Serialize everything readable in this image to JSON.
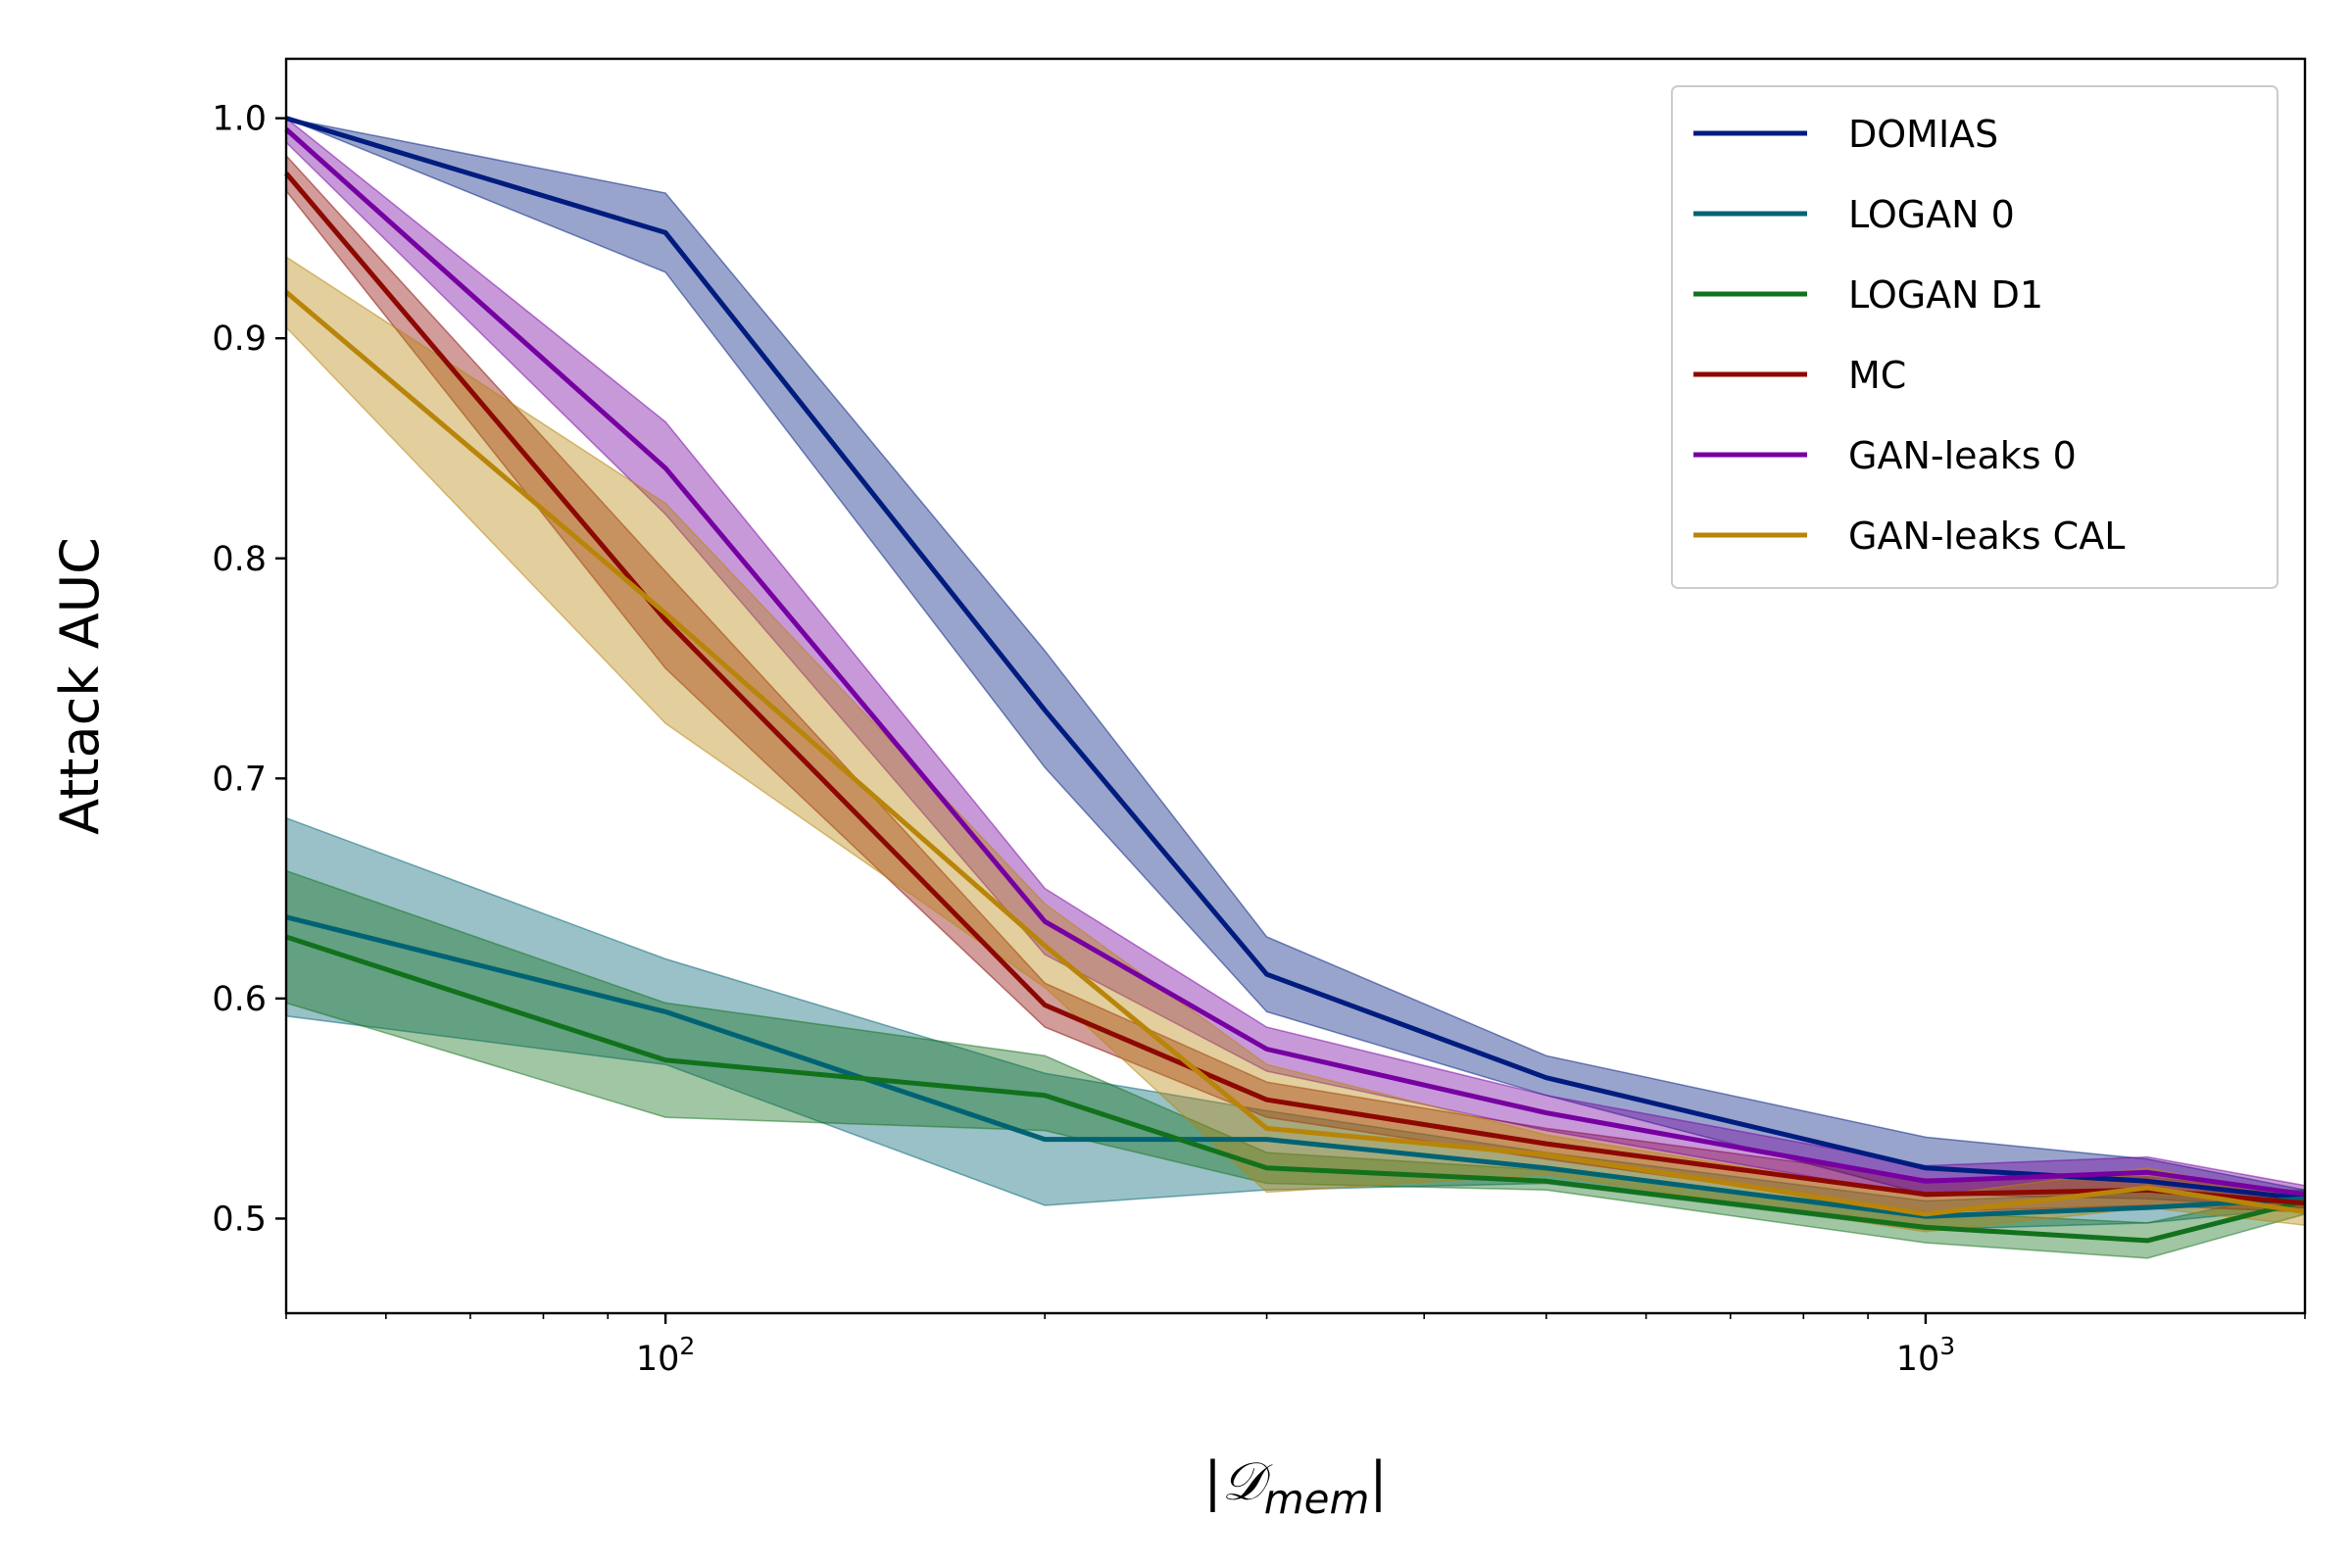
{
  "chart_data": {
    "type": "line",
    "title": "",
    "xlabel_main": "|𝒟",
    "xlabel_sub": "mem",
    "xlabel_close": "|",
    "ylabel": "Attack AUC",
    "xscale": "log",
    "xlim": [
      50,
      2000
    ],
    "ylim": [
      0.457,
      1.027
    ],
    "x_ticks": [
      {
        "value": 100,
        "base": "10",
        "exp": "2"
      },
      {
        "value": 1000,
        "base": "10",
        "exp": "3"
      }
    ],
    "y_ticks": [
      {
        "value": 0.5,
        "label": "0.5"
      },
      {
        "value": 0.6,
        "label": "0.6"
      },
      {
        "value": 0.7,
        "label": "0.7"
      },
      {
        "value": 0.8,
        "label": "0.8"
      },
      {
        "value": 0.9,
        "label": "0.9"
      },
      {
        "value": 1.0,
        "label": "1.0"
      }
    ],
    "legend_position": "top-right",
    "x": [
      50,
      100,
      200,
      300,
      500,
      1000,
      1500,
      2000
    ],
    "series": [
      {
        "name": "DOMIAS",
        "color": "#001c7f",
        "values": [
          1.0,
          0.948,
          0.731,
          0.611,
          0.564,
          0.523,
          0.517,
          0.509
        ],
        "lower": [
          1.0,
          0.93,
          0.705,
          0.594,
          0.556,
          0.511,
          0.509,
          0.505
        ],
        "upper": [
          1.0,
          0.966,
          0.758,
          0.628,
          0.574,
          0.537,
          0.527,
          0.513
        ]
      },
      {
        "name": "LOGAN 0",
        "color": "#006374",
        "values": [
          0.637,
          0.594,
          0.536,
          0.536,
          0.523,
          0.501,
          0.505,
          0.509
        ],
        "lower": [
          0.592,
          0.57,
          0.506,
          0.513,
          0.516,
          0.495,
          0.498,
          0.505
        ],
        "upper": [
          0.682,
          0.618,
          0.566,
          0.549,
          0.53,
          0.508,
          0.512,
          0.513
        ]
      },
      {
        "name": "LOGAN D1",
        "color": "#12711c",
        "values": [
          0.628,
          0.572,
          0.556,
          0.523,
          0.517,
          0.496,
          0.49,
          0.508
        ],
        "lower": [
          0.598,
          0.546,
          0.54,
          0.516,
          0.513,
          0.489,
          0.482,
          0.502
        ],
        "upper": [
          0.658,
          0.598,
          0.574,
          0.53,
          0.522,
          0.503,
          0.498,
          0.513
        ]
      },
      {
        "name": "MC",
        "color": "#8c0800",
        "values": [
          0.975,
          0.772,
          0.597,
          0.554,
          0.534,
          0.511,
          0.513,
          0.507
        ],
        "lower": [
          0.967,
          0.75,
          0.587,
          0.546,
          0.527,
          0.503,
          0.506,
          0.503
        ],
        "upper": [
          0.983,
          0.794,
          0.607,
          0.562,
          0.541,
          0.518,
          0.519,
          0.511
        ]
      },
      {
        "name": "GAN-leaks 0",
        "color": "#7600a1",
        "values": [
          0.995,
          0.841,
          0.635,
          0.577,
          0.548,
          0.517,
          0.521,
          0.511
        ],
        "lower": [
          0.989,
          0.82,
          0.62,
          0.567,
          0.54,
          0.51,
          0.514,
          0.507
        ],
        "upper": [
          1.0,
          0.862,
          0.65,
          0.587,
          0.556,
          0.524,
          0.528,
          0.515
        ]
      },
      {
        "name": "GAN-leaks CAL",
        "color": "#b8850a",
        "values": [
          0.921,
          0.775,
          0.624,
          0.541,
          0.529,
          0.502,
          0.514,
          0.503
        ],
        "lower": [
          0.905,
          0.725,
          0.605,
          0.512,
          0.52,
          0.494,
          0.505,
          0.497
        ],
        "upper": [
          0.937,
          0.825,
          0.643,
          0.57,
          0.538,
          0.51,
          0.523,
          0.509
        ]
      }
    ]
  }
}
